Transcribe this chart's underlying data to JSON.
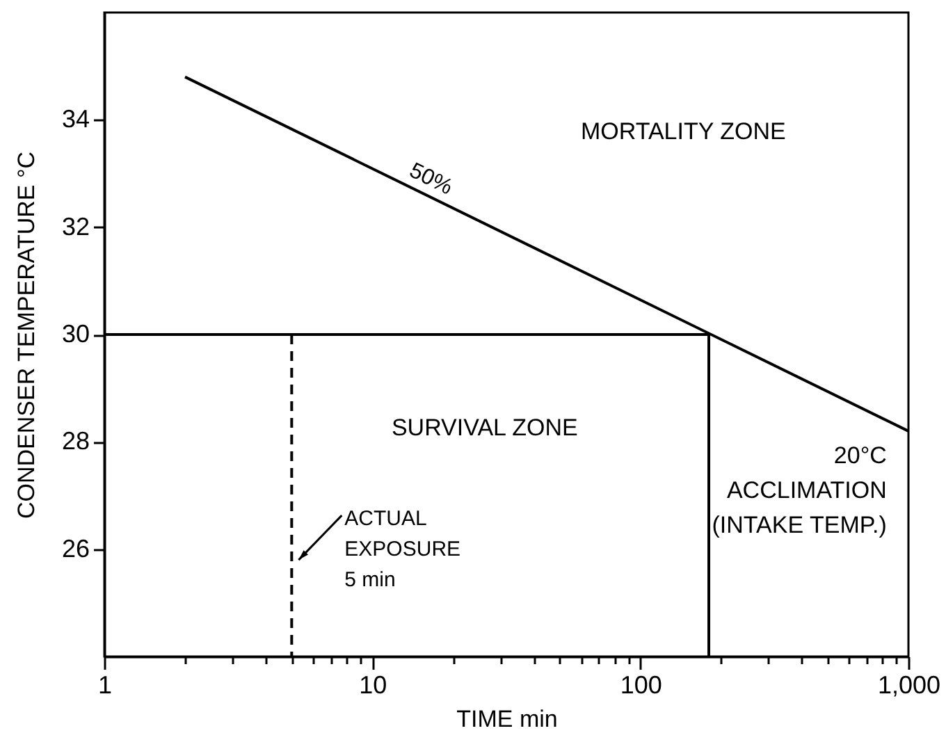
{
  "chart_data": {
    "type": "line",
    "xlabel": "TIME min",
    "ylabel": "CONDENSER TEMPERATURE °C",
    "annotations": [
      "MORTALITY ZONE",
      "SURVIVAL ZONE",
      "20°C\nACCLIMATION\n(INTAKE TEMP.)",
      {
        "text": "ACTUAL\nEXPOSURE\n5 min",
        "x": 5,
        "y": 25.8
      }
    ],
    "series": [
      {
        "name": "50%",
        "color": "#000000",
        "x": [
          2,
          1000
        ],
        "values": [
          34.8,
          28.2
        ]
      },
      {
        "color": "#000000",
        "x": [
          1,
          180,
          180
        ],
        "values": [
          30,
          30,
          24
        ]
      },
      {
        "color": "#000000",
        "x": [
          5,
          5
        ],
        "values": [
          30,
          24
        ],
        "line_style": "dashed"
      }
    ],
    "xlim": [
      1,
      1000
    ],
    "xticks": [
      1,
      {
        "value": 2,
        "label": null
      },
      {
        "value": 3,
        "label": null
      },
      {
        "value": 4,
        "label": null
      },
      {
        "value": 5,
        "label": null
      },
      {
        "value": 6,
        "label": null
      },
      {
        "value": 7,
        "label": null
      },
      {
        "value": 8,
        "label": null
      },
      {
        "value": 9,
        "label": null
      },
      10,
      {
        "value": 20,
        "label": null
      },
      {
        "value": 30,
        "label": null
      },
      {
        "value": 40,
        "label": null
      },
      {
        "value": 50,
        "label": null
      },
      {
        "value": 60,
        "label": null
      },
      {
        "value": 70,
        "label": null
      },
      {
        "value": 80,
        "label": null
      },
      {
        "value": 90,
        "label": null
      },
      100,
      {
        "value": 200,
        "label": null
      },
      {
        "value": 300,
        "label": null
      },
      {
        "value": 400,
        "label": null
      },
      {
        "value": 500,
        "label": null
      },
      {
        "value": 600,
        "label": null
      },
      {
        "value": 700,
        "label": null
      },
      {
        "value": 800,
        "label": null
      },
      {
        "value": 900,
        "label": null
      },
      {
        "value": 1000,
        "label": "1,000"
      }
    ],
    "ylim": [
      24,
      36
    ],
    "yticks": [
      26,
      28,
      30,
      32,
      34
    ],
    "log": "x",
    "grid": false,
    "line_style": "solid"
  }
}
